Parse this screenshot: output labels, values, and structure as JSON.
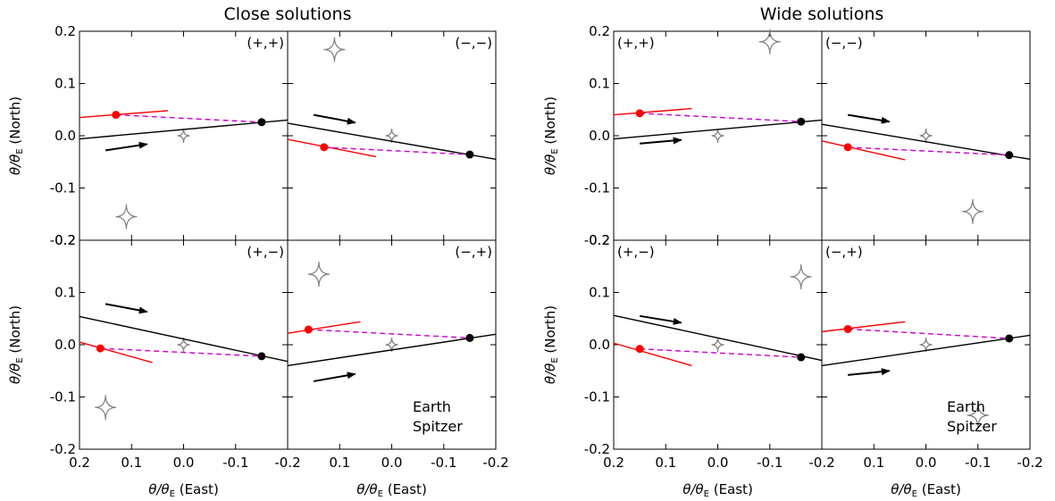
{
  "figure": {
    "left_title": "Close solutions",
    "right_title": "Wide solutions"
  },
  "axes": {
    "x_label_main": "θ/θ",
    "x_label_sub": "E",
    "x_label_suffix": " (East)",
    "y_label_main": "θ/θ",
    "y_label_sub": "E",
    "y_label_suffix": " (North)",
    "x_ticks": [
      "0.2",
      "0.1",
      "0.0",
      "-0.1",
      "-0.2"
    ],
    "y_ticks": [
      "0.2",
      "0.1",
      "0.0",
      "-0.1",
      "-0.2"
    ]
  },
  "legend": {
    "earth": "Earth",
    "spitzer": "Spitzer"
  },
  "colors": {
    "earth": "#000000",
    "spitzer": "#ff0000",
    "connector": "#cc00cc",
    "caustic": "#808080"
  },
  "chart_data": [
    {
      "type": "line",
      "group": "Close solutions",
      "label": "(+,+)",
      "xlim": [
        0.2,
        -0.2
      ],
      "ylim": [
        -0.2,
        0.2
      ],
      "earth_line": [
        [
          0.2,
          -0.006
        ],
        [
          -0.2,
          0.03
        ]
      ],
      "spitzer_line": [
        [
          0.2,
          0.035
        ],
        [
          0.03,
          0.048
        ]
      ],
      "earth_point": [
        -0.15,
        0.026
      ],
      "spitzer_point": [
        0.13,
        0.04
      ],
      "arrow": [
        [
          0.15,
          -0.028
        ],
        [
          0.07,
          -0.016
        ]
      ],
      "caustic_center": [
        0.0,
        0.0
      ],
      "caustic_far": [
        0.11,
        -0.155
      ]
    },
    {
      "type": "line",
      "group": "Close solutions",
      "label": "(−,−)",
      "xlim": [
        0.2,
        -0.2
      ],
      "ylim": [
        -0.2,
        0.2
      ],
      "earth_line": [
        [
          0.2,
          0.024
        ],
        [
          -0.2,
          -0.045
        ]
      ],
      "spitzer_line": [
        [
          0.2,
          -0.007
        ],
        [
          0.03,
          -0.04
        ]
      ],
      "earth_point": [
        -0.15,
        -0.036
      ],
      "spitzer_point": [
        0.13,
        -0.022
      ],
      "arrow": [
        [
          0.15,
          0.04
        ],
        [
          0.07,
          0.025
        ]
      ],
      "caustic_center": [
        0.0,
        0.0
      ],
      "caustic_far": [
        0.11,
        0.165
      ]
    },
    {
      "type": "line",
      "group": "Close solutions",
      "label": "(+,−)",
      "xlim": [
        0.2,
        -0.2
      ],
      "ylim": [
        -0.2,
        0.2
      ],
      "earth_line": [
        [
          0.2,
          0.054
        ],
        [
          -0.2,
          -0.032
        ]
      ],
      "spitzer_line": [
        [
          0.2,
          0.005
        ],
        [
          0.06,
          -0.034
        ]
      ],
      "earth_point": [
        -0.15,
        -0.022
      ],
      "spitzer_point": [
        0.16,
        -0.007
      ],
      "arrow": [
        [
          0.15,
          0.078
        ],
        [
          0.07,
          0.063
        ]
      ],
      "caustic_center": [
        0.0,
        0.0
      ],
      "caustic_far": [
        0.15,
        -0.12
      ]
    },
    {
      "type": "line",
      "group": "Close solutions",
      "label": "(−,+)",
      "xlim": [
        0.2,
        -0.2
      ],
      "ylim": [
        -0.2,
        0.2
      ],
      "earth_line": [
        [
          0.2,
          -0.04
        ],
        [
          -0.2,
          0.02
        ]
      ],
      "spitzer_line": [
        [
          0.2,
          0.022
        ],
        [
          0.06,
          0.044
        ]
      ],
      "earth_point": [
        -0.15,
        0.013
      ],
      "spitzer_point": [
        0.16,
        0.029
      ],
      "arrow": [
        [
          0.15,
          -0.07
        ],
        [
          0.07,
          -0.056
        ]
      ],
      "caustic_center": [
        0.0,
        0.0
      ],
      "caustic_far": [
        0.14,
        0.135
      ]
    },
    {
      "type": "line",
      "group": "Wide solutions",
      "label": "(+,+)",
      "xlim": [
        0.2,
        -0.2
      ],
      "ylim": [
        -0.2,
        0.2
      ],
      "earth_line": [
        [
          0.2,
          -0.006
        ],
        [
          -0.2,
          0.03
        ]
      ],
      "spitzer_line": [
        [
          0.2,
          0.04
        ],
        [
          0.05,
          0.052
        ]
      ],
      "earth_point": [
        -0.16,
        0.027
      ],
      "spitzer_point": [
        0.15,
        0.043
      ],
      "arrow": [
        [
          0.15,
          -0.015
        ],
        [
          0.07,
          -0.008
        ]
      ],
      "caustic_center": [
        0.0,
        0.0
      ],
      "caustic_far": [
        -0.1,
        0.18
      ]
    },
    {
      "type": "line",
      "group": "Wide solutions",
      "label": "(−,−)",
      "xlim": [
        0.2,
        -0.2
      ],
      "ylim": [
        -0.2,
        0.2
      ],
      "earth_line": [
        [
          0.2,
          0.022
        ],
        [
          -0.2,
          -0.045
        ]
      ],
      "spitzer_line": [
        [
          0.2,
          -0.01
        ],
        [
          0.04,
          -0.046
        ]
      ],
      "earth_point": [
        -0.16,
        -0.037
      ],
      "spitzer_point": [
        0.15,
        -0.022
      ],
      "arrow": [
        [
          0.15,
          0.04
        ],
        [
          0.07,
          0.027
        ]
      ],
      "caustic_center": [
        0.0,
        0.0
      ],
      "caustic_far": [
        -0.09,
        -0.145
      ]
    },
    {
      "type": "line",
      "group": "Wide solutions",
      "label": "(+,−)",
      "xlim": [
        0.2,
        -0.2
      ],
      "ylim": [
        -0.2,
        0.2
      ],
      "earth_line": [
        [
          0.2,
          0.056
        ],
        [
          -0.2,
          -0.03
        ]
      ],
      "spitzer_line": [
        [
          0.2,
          0.003
        ],
        [
          0.05,
          -0.04
        ]
      ],
      "earth_point": [
        -0.16,
        -0.024
      ],
      "spitzer_point": [
        0.15,
        -0.008
      ],
      "arrow": [
        [
          0.15,
          0.055
        ],
        [
          0.07,
          0.042
        ]
      ],
      "caustic_center": [
        0.0,
        0.0
      ],
      "caustic_far": [
        -0.16,
        0.13
      ]
    },
    {
      "type": "line",
      "group": "Wide solutions",
      "label": "(−,+)",
      "xlim": [
        0.2,
        -0.2
      ],
      "ylim": [
        -0.2,
        0.2
      ],
      "earth_line": [
        [
          0.2,
          -0.04
        ],
        [
          -0.2,
          0.018
        ]
      ],
      "spitzer_line": [
        [
          0.2,
          0.025
        ],
        [
          0.04,
          0.044
        ]
      ],
      "earth_point": [
        -0.16,
        0.012
      ],
      "spitzer_point": [
        0.15,
        0.03
      ],
      "arrow": [
        [
          0.15,
          -0.058
        ],
        [
          0.07,
          -0.05
        ]
      ],
      "caustic_center": [
        0.0,
        0.0
      ],
      "caustic_far": [
        -0.1,
        -0.135
      ]
    }
  ]
}
